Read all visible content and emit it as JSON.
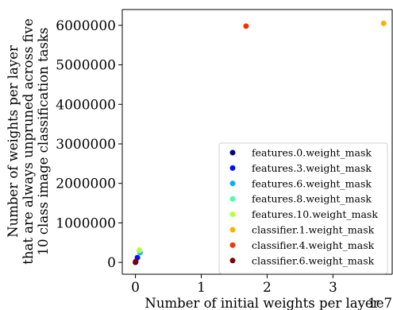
{
  "chart_data": {
    "type": "scatter",
    "title": "",
    "xlabel": "Number of initial weights per layer",
    "x_offset_label": "1e7",
    "ylabel_lines": [
      "Number of weights per layer",
      "that are always unpruned across five",
      "10 class image classification tasks"
    ],
    "xlim": [
      -0.2,
      3.9
    ],
    "ylim": [
      -300000,
      6400000
    ],
    "x_ticks": [
      0,
      1,
      2,
      3
    ],
    "x_tick_labels": [
      "0",
      "1",
      "2",
      "3"
    ],
    "y_ticks": [
      0,
      1000000,
      2000000,
      3000000,
      4000000,
      5000000,
      6000000
    ],
    "y_tick_labels": [
      "0",
      "1000000",
      "2000000",
      "3000000",
      "4000000",
      "5000000",
      "6000000"
    ],
    "grid": false,
    "legend_position": "lower-right",
    "series": [
      {
        "name": "features.0.weight_mask",
        "color": "#00007f",
        "points": [
          {
            "x": 2e-05,
            "y": 1700
          }
        ]
      },
      {
        "name": "features.3.weight_mask",
        "color": "#0010ff",
        "points": [
          {
            "x": 0.03,
            "y": 120000
          }
        ]
      },
      {
        "name": "features.6.weight_mask",
        "color": "#00b0ff",
        "points": [
          {
            "x": 0.07,
            "y": 250000
          }
        ]
      },
      {
        "name": "features.8.weight_mask",
        "color": "#4cffaa",
        "points": [
          {
            "x": 0.06,
            "y": 290000
          }
        ]
      },
      {
        "name": "features.10.weight_mask",
        "color": "#b7ff3f",
        "points": [
          {
            "x": 0.06,
            "y": 310000
          }
        ]
      },
      {
        "name": "classifier.1.weight_mask",
        "color": "#ffb000",
        "points": [
          {
            "x": 3.77,
            "y": 6050000
          }
        ]
      },
      {
        "name": "classifier.4.weight_mask",
        "color": "#ff3000",
        "points": [
          {
            "x": 1.68,
            "y": 5980000
          }
        ]
      },
      {
        "name": "classifier.6.weight_mask",
        "color": "#7f0000",
        "points": [
          {
            "x": 0.004,
            "y": 20000
          }
        ]
      }
    ]
  }
}
